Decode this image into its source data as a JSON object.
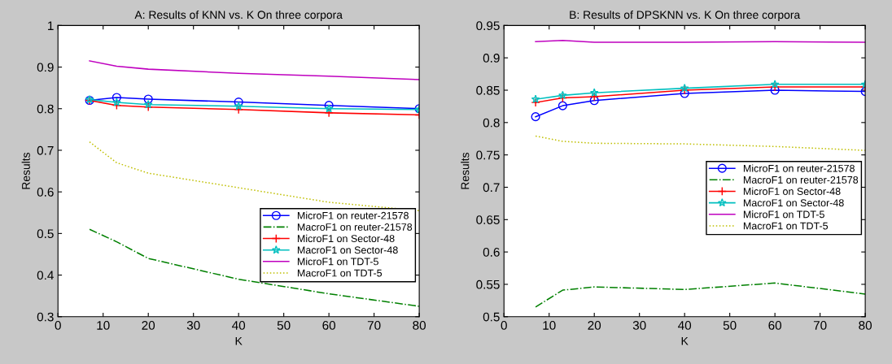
{
  "chart_data": [
    {
      "type": "line",
      "title": "A: Results of KNN vs. K On three corpora",
      "xlabel": "K",
      "ylabel": "Results",
      "x": [
        7,
        13,
        20,
        40,
        60,
        80
      ],
      "xlim": [
        0,
        80
      ],
      "xticks": [
        0,
        10,
        20,
        30,
        40,
        50,
        60,
        70,
        80
      ],
      "ylim": [
        0.3,
        1
      ],
      "yticks": [
        0.3,
        0.4,
        0.5,
        0.6,
        0.7,
        0.8,
        0.9,
        1
      ],
      "grid": false,
      "legend": "center right",
      "series": [
        {
          "name": "MicroF1 on reuter-21578",
          "color": "#0000ff",
          "marker": "circle",
          "line_style": "solid",
          "values": [
            0.82,
            0.827,
            0.823,
            0.816,
            0.808,
            0.8
          ]
        },
        {
          "name": "MacroF1 on reuter-21578",
          "color": "#008000",
          "marker": "none",
          "line_style": "dashdot",
          "values": [
            0.51,
            0.48,
            0.44,
            0.39,
            0.355,
            0.325
          ]
        },
        {
          "name": "MicroF1 on Sector-48",
          "color": "#ff0000",
          "marker": "cross",
          "line_style": "solid",
          "values": [
            0.82,
            0.808,
            0.804,
            0.798,
            0.79,
            0.785
          ]
        },
        {
          "name": "MacroF1 on Sector-48",
          "color": "#00bfbf",
          "marker": "star",
          "line_style": "solid",
          "values": [
            0.822,
            0.815,
            0.81,
            0.806,
            0.8,
            0.798
          ]
        },
        {
          "name": "MicroF1 on TDT-5",
          "color": "#bf00bf",
          "marker": "none",
          "line_style": "solid",
          "values": [
            0.915,
            0.902,
            0.895,
            0.885,
            0.878,
            0.87
          ]
        },
        {
          "name": "MacroF1 on TDT-5",
          "color": "#bfbf00",
          "marker": "none",
          "line_style": "dotted",
          "values": [
            0.72,
            0.67,
            0.645,
            0.61,
            0.575,
            0.555
          ]
        }
      ]
    },
    {
      "type": "line",
      "title": "B: Results of DPSKNN vs. K On three corpora",
      "xlabel": "K",
      "ylabel": "Results",
      "x": [
        7,
        13,
        20,
        40,
        60,
        80
      ],
      "xlim": [
        0,
        80
      ],
      "xticks": [
        0,
        10,
        20,
        30,
        40,
        50,
        60,
        70,
        80
      ],
      "ylim": [
        0.5,
        0.95
      ],
      "yticks": [
        0.5,
        0.55,
        0.6,
        0.65,
        0.7,
        0.75,
        0.8,
        0.85,
        0.9,
        0.95
      ],
      "grid": false,
      "legend": "center right",
      "series": [
        {
          "name": "MicroF1 on reuter-21578",
          "color": "#0000ff",
          "marker": "circle",
          "line_style": "solid",
          "values": [
            0.809,
            0.826,
            0.834,
            0.845,
            0.85,
            0.848
          ]
        },
        {
          "name": "MacroF1 on reuter-21578",
          "color": "#008000",
          "marker": "none",
          "line_style": "dashdot",
          "values": [
            0.515,
            0.541,
            0.546,
            0.542,
            0.552,
            0.535
          ]
        },
        {
          "name": "MicroF1 on Sector-48",
          "color": "#ff0000",
          "marker": "cross",
          "line_style": "solid",
          "values": [
            0.831,
            0.838,
            0.84,
            0.85,
            0.855,
            0.855
          ]
        },
        {
          "name": "MacroF1 on Sector-48",
          "color": "#00bfbf",
          "marker": "star",
          "line_style": "solid",
          "values": [
            0.836,
            0.842,
            0.846,
            0.853,
            0.859,
            0.859
          ]
        },
        {
          "name": "MicroF1 on TDT-5",
          "color": "#bf00bf",
          "marker": "none",
          "line_style": "solid",
          "values": [
            0.925,
            0.927,
            0.924,
            0.924,
            0.925,
            0.924
          ]
        },
        {
          "name": "MacroF1 on TDT-5",
          "color": "#bfbf00",
          "marker": "none",
          "line_style": "dotted",
          "values": [
            0.779,
            0.771,
            0.768,
            0.767,
            0.763,
            0.757
          ]
        }
      ]
    }
  ]
}
